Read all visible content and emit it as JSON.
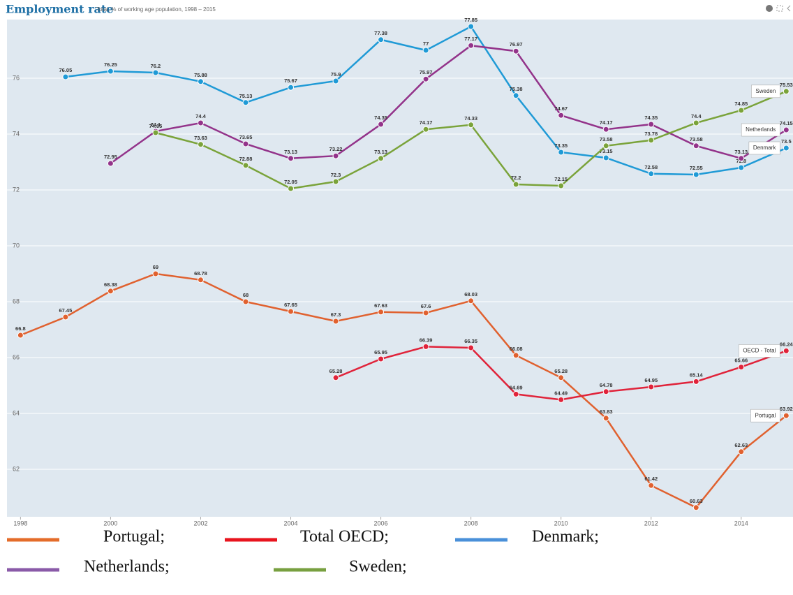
{
  "chart_data": {
    "type": "line",
    "title": "Employment rate",
    "subtitle": "Total, % of working age population, 1998 – 2015",
    "x": [
      1998,
      1999,
      2000,
      2001,
      2002,
      2003,
      2004,
      2005,
      2006,
      2007,
      2008,
      2009,
      2010,
      2011,
      2012,
      2013,
      2014,
      2015
    ],
    "xlim": [
      1997.7,
      2015.15
    ],
    "xticks": [
      1998,
      2000,
      2002,
      2004,
      2006,
      2008,
      2010,
      2012,
      2014
    ],
    "ylim": [
      60.3,
      78.1
    ],
    "yticks": [
      62,
      64,
      66,
      68,
      70,
      72,
      74,
      76
    ],
    "grid": true,
    "series": [
      {
        "name": "Portugal",
        "color": "#e0612f",
        "values": [
          66.8,
          67.45,
          68.38,
          69,
          68.78,
          68,
          67.65,
          67.3,
          67.63,
          67.6,
          68.03,
          66.08,
          65.28,
          63.83,
          61.42,
          60.63,
          62.63,
          63.92
        ]
      },
      {
        "name": "OECD - Total",
        "color": "#e0233a",
        "values": [
          null,
          null,
          null,
          null,
          null,
          null,
          null,
          65.28,
          65.95,
          66.39,
          66.35,
          64.69,
          64.49,
          64.78,
          64.95,
          65.14,
          65.66,
          66.24
        ]
      },
      {
        "name": "Denmark",
        "color": "#1f9ad6",
        "values": [
          null,
          76.05,
          76.25,
          76.2,
          75.88,
          75.13,
          75.67,
          75.9,
          77.38,
          77,
          77.85,
          75.38,
          73.35,
          73.15,
          72.58,
          72.55,
          72.8,
          73.5
        ]
      },
      {
        "name": "Netherlands",
        "color": "#93338a",
        "values": [
          null,
          null,
          72.95,
          74.1,
          74.4,
          73.65,
          73.13,
          73.22,
          74.35,
          75.97,
          77.17,
          76.97,
          74.67,
          74.17,
          74.35,
          73.58,
          73.13,
          74.15
        ]
      },
      {
        "name": "Sweden",
        "color": "#7aa33a",
        "values": [
          null,
          null,
          null,
          74.05,
          73.63,
          72.88,
          72.05,
          72.3,
          73.13,
          74.17,
          74.33,
          72.2,
          72.15,
          73.58,
          73.78,
          74.4,
          74.85,
          75.53
        ]
      }
    ],
    "legend": [
      {
        "label": "Portugal;",
        "color": "#e46c2a"
      },
      {
        "label": "Total OECD;",
        "color": "#e8141e"
      },
      {
        "label": "Denmark;",
        "color": "#4a90d9"
      },
      {
        "label": "Netherlands;",
        "color": "#8a5aa8"
      },
      {
        "label": "Sweden;",
        "color": "#78a040"
      }
    ]
  }
}
